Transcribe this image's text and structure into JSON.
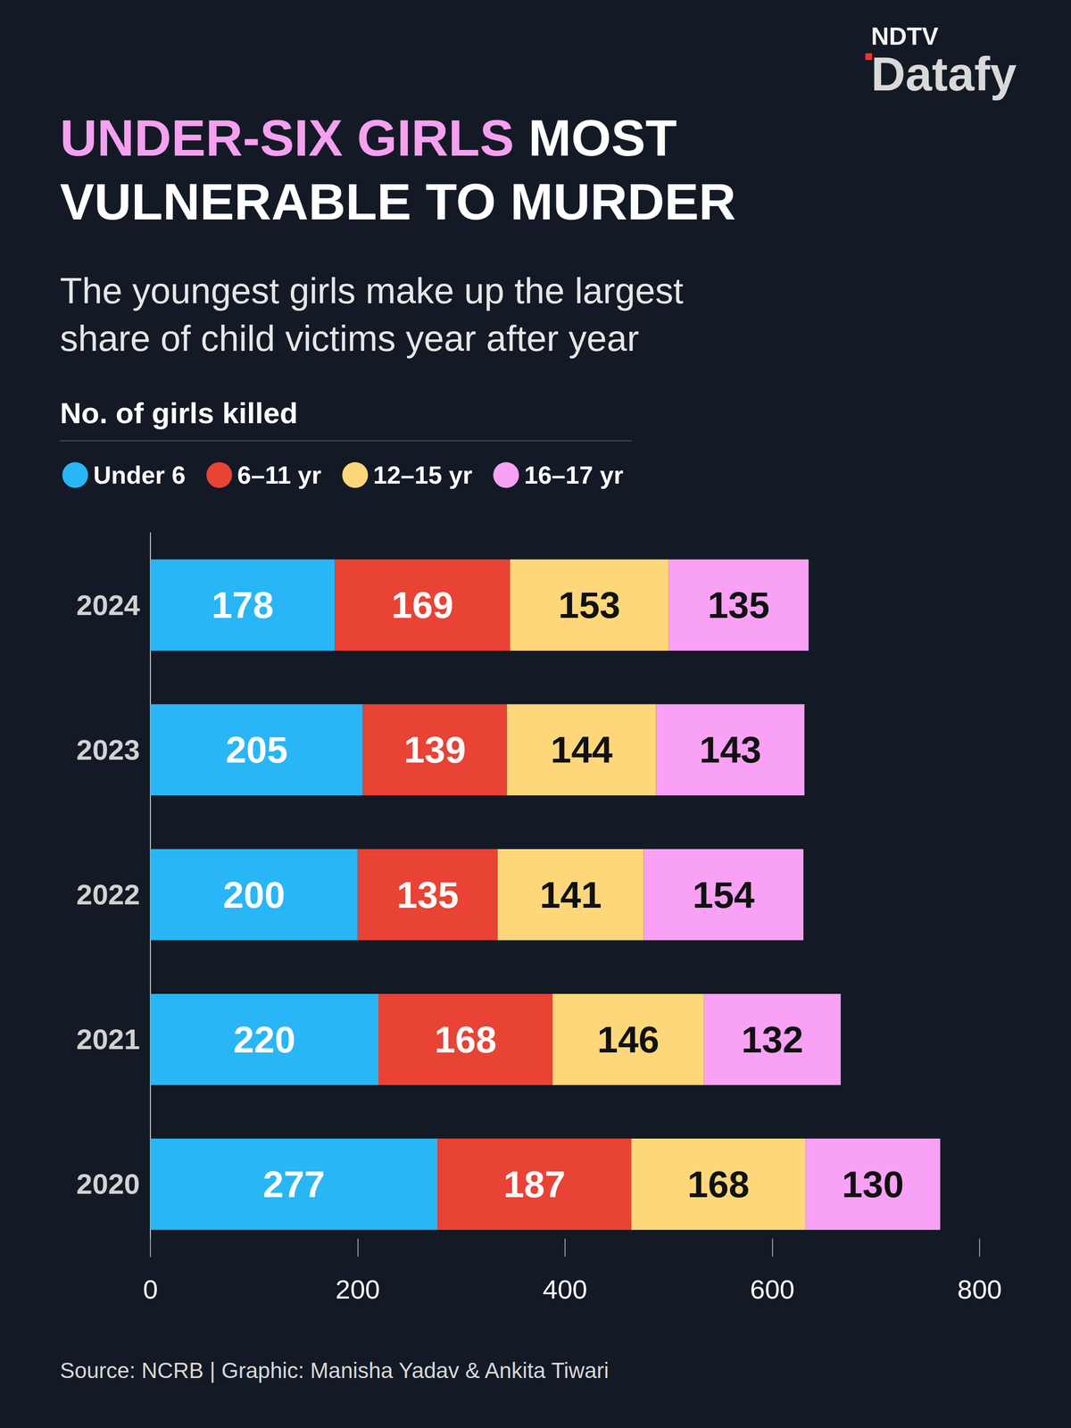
{
  "chart_data": {
    "type": "bar",
    "title": "UNDER-SIX GIRLS MOST VULNERABLE TO MURDER",
    "subtitle": "The youngest girls make up the largest share of child victims year after year",
    "xlabel": "No. of girls killed",
    "source": "Source: NCRB | Graphic: Manisha Yadav & Ankita Tiwari",
    "logo": [
      "NDTV",
      "Datafy"
    ],
    "categories": [
      "2024",
      "2023",
      "2022",
      "2021",
      "2020"
    ],
    "series": [
      {
        "name": "Under 6",
        "color": "#29b6f6",
        "values": [
          178,
          205,
          200,
          220,
          277
        ]
      },
      {
        "name": "6–11 yr",
        "color": "#e84335",
        "values": [
          169,
          139,
          135,
          168,
          187
        ]
      },
      {
        "name": "12–15 yr",
        "color": "#fdd77a",
        "values": [
          153,
          144,
          141,
          146,
          168
        ]
      },
      {
        "name": "16–17 yr",
        "color": "#f9a1f5",
        "values": [
          135,
          143,
          154,
          132,
          130
        ]
      }
    ],
    "xlim": [
      0,
      800
    ],
    "xticks": [
      0,
      200,
      400,
      600,
      800
    ],
    "grid": false,
    "legend": "top-left",
    "orientation": "horizontal",
    "stacked": true,
    "data_labels": true
  }
}
